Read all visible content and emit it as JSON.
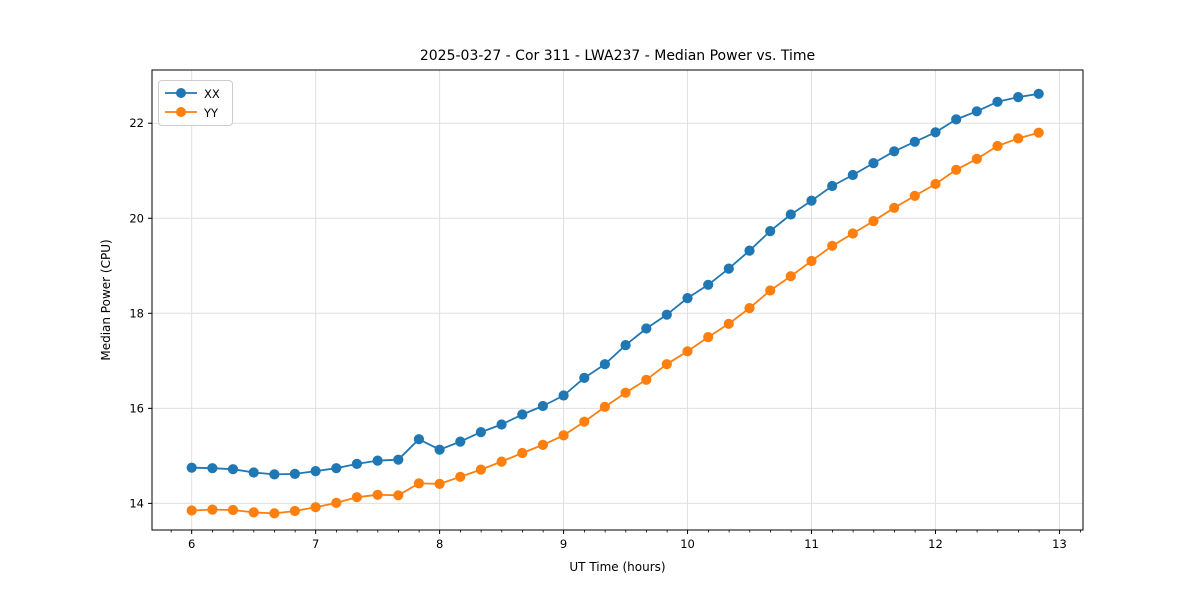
{
  "chart_data": {
    "type": "line",
    "title": "2025-03-27 - Cor 311 - LWA237 - Median Power vs. Time",
    "xlabel": "UT Time (hours)",
    "ylabel": "Median Power (CPU)",
    "xlim": [
      5.68,
      13.19
    ],
    "ylim": [
      13.44,
      23.12
    ],
    "xticks": [
      6,
      7,
      8,
      9,
      10,
      11,
      12,
      13
    ],
    "yticks": [
      14,
      16,
      18,
      20,
      22
    ],
    "x_minor_step": 0.1667,
    "grid": true,
    "grid_color": "#e0e0e0",
    "spine_color": "#000000",
    "legend_position": "upper-left",
    "marker": "circle",
    "x": [
      6,
      6.167,
      6.333,
      6.5,
      6.667,
      6.833,
      7,
      7.167,
      7.333,
      7.5,
      7.667,
      7.833,
      8,
      8.167,
      8.333,
      8.5,
      8.667,
      8.833,
      9,
      9.167,
      9.333,
      9.5,
      9.667,
      9.833,
      10,
      10.167,
      10.333,
      10.5,
      10.667,
      10.833,
      11,
      11.167,
      11.333,
      11.5,
      11.667,
      11.833,
      12,
      12.167,
      12.333,
      12.5,
      12.667,
      12.833
    ],
    "series": [
      {
        "name": "XX",
        "color": "#1f77b4",
        "values": [
          14.75,
          14.74,
          14.72,
          14.65,
          14.61,
          14.62,
          14.68,
          14.74,
          14.83,
          14.9,
          14.92,
          15.35,
          15.13,
          15.3,
          15.5,
          15.66,
          15.87,
          16.05,
          16.27,
          16.64,
          16.93,
          17.33,
          17.68,
          17.97,
          18.32,
          18.6,
          18.94,
          19.32,
          19.73,
          20.08,
          20.37,
          20.68,
          20.91,
          21.16,
          21.41,
          21.61,
          21.81,
          22.08,
          22.25,
          22.45,
          22.55,
          22.62
        ]
      },
      {
        "name": "YY",
        "color": "#ff7f0e",
        "values": [
          13.85,
          13.87,
          13.86,
          13.81,
          13.79,
          13.84,
          13.92,
          14.01,
          14.13,
          14.18,
          14.17,
          14.42,
          14.41,
          14.56,
          14.71,
          14.88,
          15.06,
          15.23,
          15.43,
          15.72,
          16.03,
          16.33,
          16.6,
          16.93,
          17.2,
          17.5,
          17.78,
          18.11,
          18.48,
          18.78,
          19.1,
          19.42,
          19.68,
          19.94,
          20.22,
          20.47,
          20.72,
          21.02,
          21.25,
          21.52,
          21.68,
          21.8
        ]
      }
    ]
  }
}
